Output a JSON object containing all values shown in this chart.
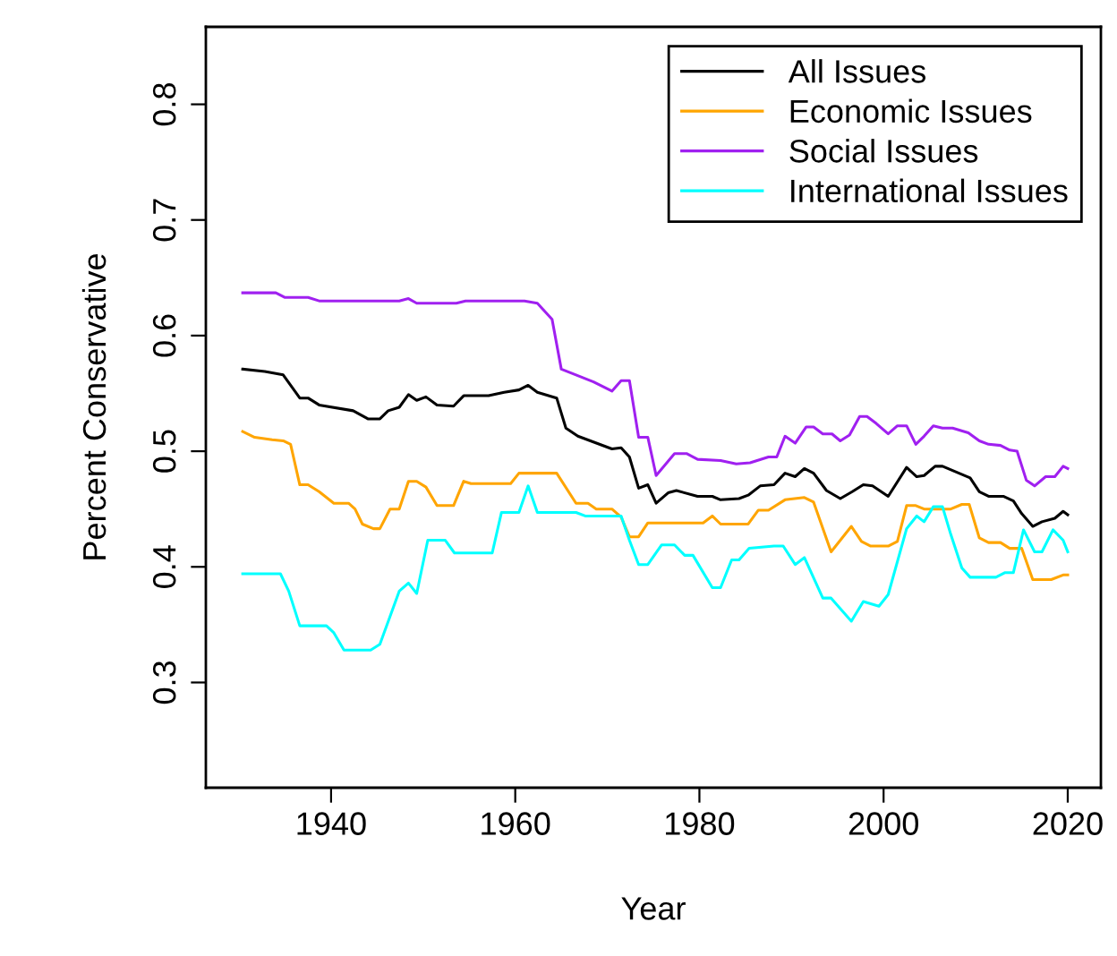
{
  "chart_data": {
    "type": "line",
    "xlabel": "Year",
    "ylabel": "Percent Conservative",
    "xlim": [
      1926.4,
      2023.6
    ],
    "ylim": [
      0.209,
      0.867
    ],
    "xticks": [
      1940,
      1960,
      1980,
      2000,
      2020
    ],
    "yticks": [
      0.3,
      0.4,
      0.5,
      0.6,
      0.7,
      0.8
    ],
    "grid": false,
    "legend": "top right",
    "series": [
      {
        "name": "All Issues",
        "color": "#000000",
        "x": [
          1930.4,
          1932.8,
          1934.8,
          1936.6,
          1937.5,
          1938.7,
          1942.4,
          1944,
          1945.3,
          1946.2,
          1947.4,
          1948.4,
          1949.3,
          1950.3,
          1951.5,
          1953.3,
          1954.4,
          1957.1,
          1958.8,
          1960.4,
          1961.4,
          1962.4,
          1964.5,
          1965.5,
          1966.8,
          1970.5,
          1971.5,
          1972.4,
          1973.4,
          1974.4,
          1975.3,
          1976.6,
          1977.5,
          1979.8,
          1981.4,
          1982.3,
          1984.3,
          1985.3,
          1986.6,
          1988.1,
          1989.3,
          1990.4,
          1991.4,
          1992.4,
          1993.8,
          1995.3,
          1996.6,
          1997.8,
          1998.8,
          2000.5,
          2002.5,
          2003.6,
          2004.4,
          2005.6,
          2006.4,
          2009.4,
          2010.4,
          2011.4,
          2013,
          2014.1,
          2015,
          2016.2,
          2017.2,
          2018.6,
          2019.5,
          2020
        ],
        "values": [
          0.571,
          0.569,
          0.566,
          0.546,
          0.546,
          0.54,
          0.535,
          0.528,
          0.528,
          0.535,
          0.538,
          0.549,
          0.544,
          0.547,
          0.54,
          0.539,
          0.548,
          0.548,
          0.551,
          0.553,
          0.557,
          0.551,
          0.546,
          0.52,
          0.513,
          0.502,
          0.503,
          0.495,
          0.468,
          0.471,
          0.455,
          0.464,
          0.466,
          0.461,
          0.461,
          0.458,
          0.459,
          0.462,
          0.47,
          0.471,
          0.481,
          0.478,
          0.485,
          0.481,
          0.466,
          0.459,
          0.465,
          0.471,
          0.47,
          0.461,
          0.486,
          0.478,
          0.479,
          0.487,
          0.487,
          0.477,
          0.465,
          0.461,
          0.461,
          0.457,
          0.446,
          0.435,
          0.439,
          0.442,
          0.448,
          0.445
        ]
      },
      {
        "name": "Economic Issues",
        "color": "#ffa500",
        "x": [
          1930.4,
          1931.7,
          1933.6,
          1934.8,
          1935.6,
          1936.6,
          1937.5,
          1938.7,
          1940.3,
          1941.9,
          1942.6,
          1943.4,
          1944.6,
          1945.3,
          1946.4,
          1947.4,
          1948.4,
          1949.3,
          1950.3,
          1951.5,
          1953.3,
          1954.4,
          1955.2,
          1959.5,
          1960.4,
          1964.5,
          1966.6,
          1967.9,
          1968.8,
          1970.5,
          1971.5,
          1972.4,
          1973.4,
          1974.4,
          1977.3,
          1980.4,
          1981.4,
          1982.3,
          1985.3,
          1986.4,
          1987.5,
          1989.3,
          1991.4,
          1992.4,
          1994.3,
          1996.5,
          1997.6,
          1998.6,
          2000.5,
          2001.5,
          2002.5,
          2003.5,
          2004.4,
          2007.3,
          2008.5,
          2009.3,
          2010.4,
          2011.4,
          2012.7,
          2013.7,
          2015,
          2016.2,
          2018.2,
          2019.5,
          2020
        ],
        "values": [
          0.517,
          0.512,
          0.51,
          0.509,
          0.506,
          0.471,
          0.471,
          0.465,
          0.455,
          0.455,
          0.45,
          0.437,
          0.433,
          0.433,
          0.45,
          0.45,
          0.474,
          0.474,
          0.469,
          0.453,
          0.453,
          0.474,
          0.472,
          0.472,
          0.481,
          0.481,
          0.455,
          0.455,
          0.45,
          0.45,
          0.443,
          0.426,
          0.426,
          0.438,
          0.438,
          0.438,
          0.444,
          0.437,
          0.437,
          0.449,
          0.449,
          0.458,
          0.46,
          0.456,
          0.413,
          0.435,
          0.422,
          0.418,
          0.418,
          0.422,
          0.453,
          0.453,
          0.45,
          0.45,
          0.454,
          0.454,
          0.425,
          0.421,
          0.421,
          0.416,
          0.416,
          0.389,
          0.389,
          0.393,
          0.393
        ]
      },
      {
        "name": "Social Issues",
        "color": "#a020f0",
        "x": [
          1930.4,
          1934,
          1935,
          1937.5,
          1938.7,
          1947.4,
          1948.4,
          1949.3,
          1953.6,
          1954.6,
          1961,
          1962.4,
          1964,
          1965,
          1966.6,
          1968.5,
          1970.5,
          1971.5,
          1972.4,
          1973.4,
          1974.4,
          1975.3,
          1977.3,
          1978.6,
          1979.8,
          1982.3,
          1984,
          1985.5,
          1987.5,
          1988.4,
          1989.3,
          1990.4,
          1991.6,
          1992.4,
          1993.4,
          1994.4,
          1995.3,
          1996.3,
          1997.4,
          1998.2,
          1999.2,
          2000.5,
          2001.5,
          2002.5,
          2003.5,
          2004.4,
          2005.4,
          2006.4,
          2007.5,
          2009.2,
          2010.4,
          2011.4,
          2012.7,
          2013.7,
          2014.5,
          2015.5,
          2016.4,
          2017.6,
          2018.6,
          2019.5,
          2020
        ],
        "values": [
          0.637,
          0.637,
          0.633,
          0.633,
          0.63,
          0.63,
          0.632,
          0.628,
          0.628,
          0.63,
          0.63,
          0.628,
          0.614,
          0.571,
          0.566,
          0.56,
          0.552,
          0.561,
          0.561,
          0.512,
          0.512,
          0.479,
          0.498,
          0.498,
          0.493,
          0.492,
          0.489,
          0.49,
          0.495,
          0.495,
          0.513,
          0.507,
          0.521,
          0.521,
          0.515,
          0.515,
          0.509,
          0.514,
          0.53,
          0.53,
          0.524,
          0.515,
          0.522,
          0.522,
          0.506,
          0.513,
          0.522,
          0.52,
          0.52,
          0.516,
          0.509,
          0.506,
          0.505,
          0.501,
          0.5,
          0.475,
          0.47,
          0.478,
          0.478,
          0.487,
          0.485
        ]
      },
      {
        "name": "International Issues",
        "color": "#00ffff",
        "x": [
          1930.4,
          1934.5,
          1935.4,
          1936.6,
          1939.5,
          1940.3,
          1941.4,
          1944.3,
          1945.3,
          1946.4,
          1947.4,
          1948.4,
          1949.3,
          1950.5,
          1952.4,
          1953.4,
          1957.5,
          1958.5,
          1960.4,
          1961.4,
          1962.4,
          1966.6,
          1967.6,
          1971.5,
          1972.4,
          1973.4,
          1974.4,
          1975.9,
          1977.3,
          1978.4,
          1979.3,
          1981.4,
          1982.3,
          1983.5,
          1984.3,
          1985.4,
          1988.1,
          1989.1,
          1990.4,
          1991.4,
          1993.4,
          1994.3,
          1996.5,
          1997.8,
          1999.5,
          2000.5,
          2002.5,
          2003.6,
          2004.4,
          2005.4,
          2006.4,
          2007.3,
          2008.5,
          2009.4,
          2012.2,
          2013.2,
          2014.1,
          2015.2,
          2016.4,
          2017.2,
          2018.4,
          2019.5,
          2020
        ],
        "values": [
          0.394,
          0.394,
          0.379,
          0.349,
          0.349,
          0.343,
          0.328,
          0.328,
          0.333,
          0.357,
          0.379,
          0.386,
          0.377,
          0.423,
          0.423,
          0.412,
          0.412,
          0.447,
          0.447,
          0.47,
          0.447,
          0.447,
          0.444,
          0.444,
          0.423,
          0.402,
          0.402,
          0.419,
          0.419,
          0.41,
          0.41,
          0.382,
          0.382,
          0.406,
          0.406,
          0.416,
          0.418,
          0.418,
          0.402,
          0.408,
          0.373,
          0.373,
          0.353,
          0.37,
          0.366,
          0.376,
          0.433,
          0.444,
          0.439,
          0.452,
          0.452,
          0.428,
          0.399,
          0.391,
          0.391,
          0.395,
          0.395,
          0.432,
          0.413,
          0.413,
          0.432,
          0.423,
          0.413
        ]
      }
    ]
  }
}
